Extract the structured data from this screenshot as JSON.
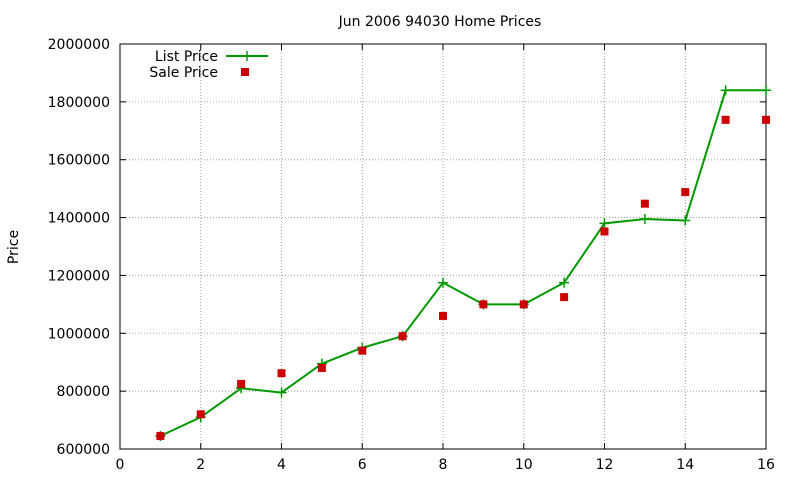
{
  "chart_data": {
    "type": "line",
    "title": "Jun 2006 94030 Home Prices",
    "xlabel": "",
    "ylabel": "Price",
    "xlim": [
      0,
      16
    ],
    "ylim": [
      600000,
      2000000
    ],
    "x_ticks": [
      0,
      2,
      4,
      6,
      8,
      10,
      12,
      14,
      16
    ],
    "y_ticks": [
      600000,
      800000,
      1000000,
      1200000,
      1400000,
      1600000,
      1800000,
      2000000
    ],
    "grid": true,
    "legend_position": "top-left",
    "series": [
      {
        "name": "List Price",
        "style": "line+cross",
        "color": "#009900",
        "x": [
          1,
          2,
          3,
          4,
          5,
          6,
          7,
          8,
          9,
          10,
          11,
          12,
          13,
          14,
          15,
          16
        ],
        "y": [
          645000,
          710000,
          810000,
          795000,
          895000,
          950000,
          990000,
          1175000,
          1100000,
          1100000,
          1175000,
          1380000,
          1395000,
          1390000,
          1840000,
          1840000
        ]
      },
      {
        "name": "Sale Price",
        "style": "square",
        "color": "#cc0000",
        "x": [
          1,
          2,
          3,
          4,
          5,
          6,
          7,
          8,
          9,
          10,
          11,
          12,
          13,
          14,
          15,
          16
        ],
        "y": [
          645000,
          720000,
          825000,
          862000,
          880000,
          940000,
          990000,
          1060000,
          1100000,
          1100000,
          1125000,
          1352000,
          1448000,
          1488000,
          1738000,
          1738000
        ]
      }
    ]
  }
}
